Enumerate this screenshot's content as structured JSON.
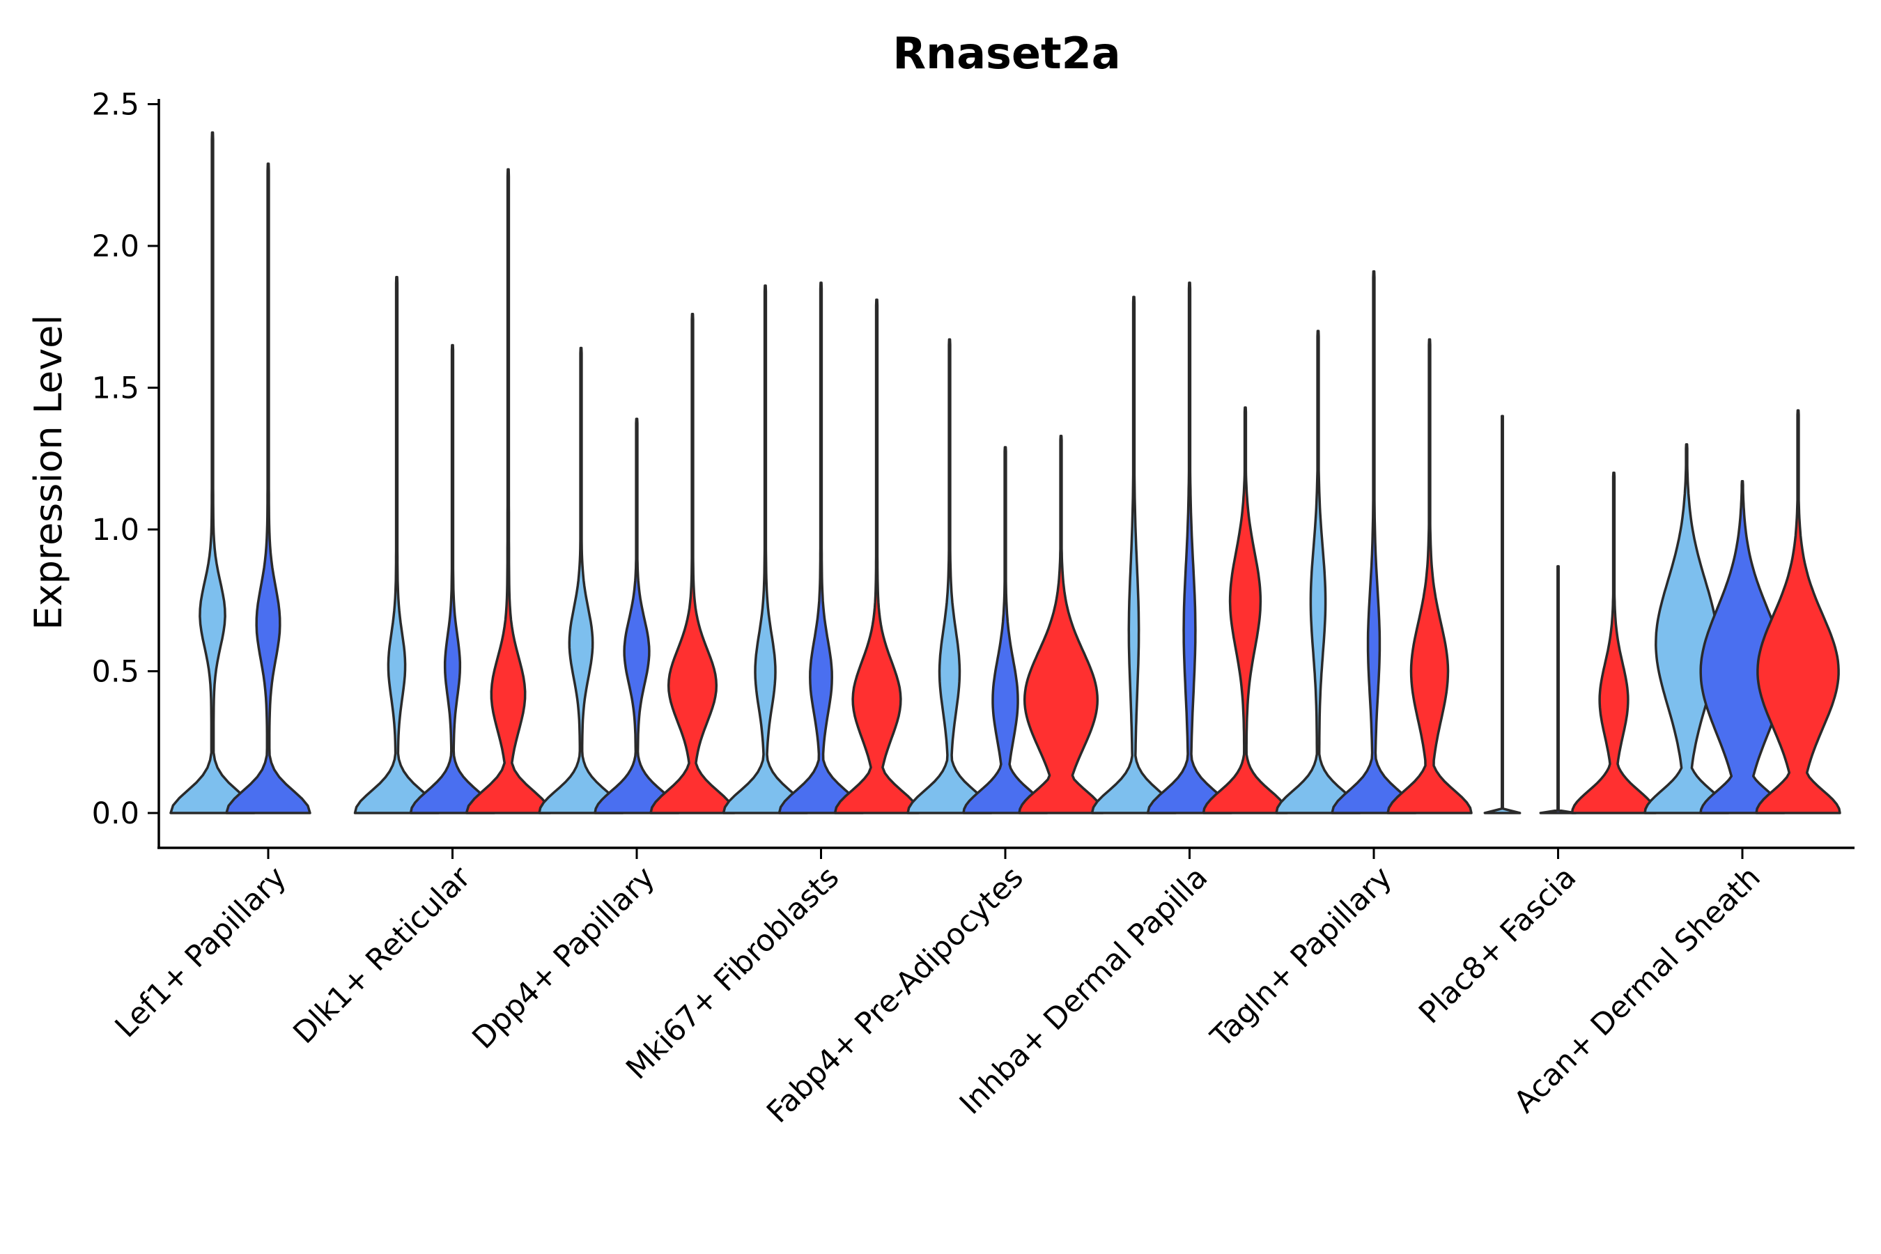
{
  "chart_data": {
    "type": "violin",
    "title": "Rnaset2a",
    "xlabel": "",
    "ylabel": "Expression Level",
    "ylim": [
      -0.12,
      2.55
    ],
    "yticks": [
      0.0,
      0.5,
      1.0,
      1.5,
      2.0,
      2.5
    ],
    "ytick_labels": [
      "0.0",
      "0.5",
      "1.0",
      "1.5",
      "2.0",
      "2.5"
    ],
    "grid": false,
    "legend": "none",
    "series": [
      {
        "name": "group-1",
        "color": "#7dbfee"
      },
      {
        "name": "group-2",
        "color": "#4a6ff0"
      },
      {
        "name": "group-3",
        "color": "#ff3030"
      }
    ],
    "categories": [
      "Lef1+ Papillary",
      "Dlk1+ Reticular",
      "Dpp4+ Papillary",
      "Mki67+ Fibroblasts",
      "Fabp4+ Pre-Adipocytes",
      "Inhba+ Dermal Papilla",
      "Tagln+ Papillary",
      "Plac8+ Fascia",
      "Acan+ Dermal Sheath"
    ],
    "violins": [
      {
        "category": "Lef1+ Papillary",
        "series": "group-1",
        "max": 2.4,
        "mode": 0.7,
        "spread": 0.1,
        "upper_width": 0.28
      },
      {
        "category": "Lef1+ Papillary",
        "series": "group-2",
        "max": 2.29,
        "mode": 0.67,
        "spread": 0.12,
        "upper_width": 0.26
      },
      {
        "category": "Dlk1+ Reticular",
        "series": "group-1",
        "max": 1.89,
        "mode": 0.52,
        "spread": 0.1,
        "upper_width": 0.18
      },
      {
        "category": "Dlk1+ Reticular",
        "series": "group-2",
        "max": 1.65,
        "mode": 0.52,
        "spread": 0.09,
        "upper_width": 0.16
      },
      {
        "category": "Dlk1+ Reticular",
        "series": "group-3",
        "max": 2.27,
        "mode": 0.42,
        "spread": 0.12,
        "upper_width": 0.38
      },
      {
        "category": "Dpp4+ Papillary",
        "series": "group-1",
        "max": 1.64,
        "mode": 0.6,
        "spread": 0.11,
        "upper_width": 0.26
      },
      {
        "category": "Dpp4+ Papillary",
        "series": "group-2",
        "max": 1.39,
        "mode": 0.57,
        "spread": 0.1,
        "upper_width": 0.28
      },
      {
        "category": "Dpp4+ Papillary",
        "series": "group-3",
        "max": 1.76,
        "mode": 0.45,
        "spread": 0.12,
        "upper_width": 0.55
      },
      {
        "category": "Mki67+ Fibroblasts",
        "series": "group-1",
        "max": 1.86,
        "mode": 0.5,
        "spread": 0.12,
        "upper_width": 0.22
      },
      {
        "category": "Mki67+ Fibroblasts",
        "series": "group-2",
        "max": 1.87,
        "mode": 0.48,
        "spread": 0.12,
        "upper_width": 0.24
      },
      {
        "category": "Mki67+ Fibroblasts",
        "series": "group-3",
        "max": 1.81,
        "mode": 0.4,
        "spread": 0.13,
        "upper_width": 0.55
      },
      {
        "category": "Fabp4+ Pre-Adipocytes",
        "series": "group-1",
        "max": 1.67,
        "mode": 0.5,
        "spread": 0.14,
        "upper_width": 0.22
      },
      {
        "category": "Fabp4+ Pre-Adipocytes",
        "series": "group-2",
        "max": 1.29,
        "mode": 0.4,
        "spread": 0.14,
        "upper_width": 0.28
      },
      {
        "category": "Fabp4+ Pre-Adipocytes",
        "series": "group-3",
        "max": 1.33,
        "mode": 0.4,
        "spread": 0.18,
        "upper_width": 0.85
      },
      {
        "category": "Inhba+ Dermal Papilla",
        "series": "group-1",
        "max": 1.82,
        "mode": 0.65,
        "spread": 0.25,
        "upper_width": 0.1
      },
      {
        "category": "Inhba+ Dermal Papilla",
        "series": "group-2",
        "max": 1.87,
        "mode": 0.65,
        "spread": 0.25,
        "upper_width": 0.12
      },
      {
        "category": "Inhba+ Dermal Papilla",
        "series": "group-3",
        "max": 1.43,
        "mode": 0.75,
        "spread": 0.18,
        "upper_width": 0.35
      },
      {
        "category": "Tagln+ Papillary",
        "series": "group-1",
        "max": 1.7,
        "mode": 0.75,
        "spread": 0.2,
        "upper_width": 0.16
      },
      {
        "category": "Tagln+ Papillary",
        "series": "group-2",
        "max": 1.91,
        "mode": 0.6,
        "spread": 0.2,
        "upper_width": 0.12
      },
      {
        "category": "Tagln+ Papillary",
        "series": "group-3",
        "max": 1.67,
        "mode": 0.5,
        "spread": 0.18,
        "upper_width": 0.42
      },
      {
        "category": "Plac8+ Fascia",
        "series": "group-1",
        "max": 1.4,
        "mode": 0.0,
        "spread": 0.0,
        "upper_width": 0.0
      },
      {
        "category": "Plac8+ Fascia",
        "series": "group-2",
        "max": 0.87,
        "mode": 0.0,
        "spread": 0.0,
        "upper_width": 0.0
      },
      {
        "category": "Plac8+ Fascia",
        "series": "group-3",
        "max": 1.2,
        "mode": 0.4,
        "spread": 0.12,
        "upper_width": 0.32
      },
      {
        "category": "Acan+ Dermal Sheath",
        "series": "group-1",
        "max": 1.3,
        "mode": 0.6,
        "spread": 0.25,
        "upper_width": 0.72
      },
      {
        "category": "Acan+ Dermal Sheath",
        "series": "group-2",
        "max": 1.17,
        "mode": 0.5,
        "spread": 0.25,
        "upper_width": 0.98
      },
      {
        "category": "Acan+ Dermal Sheath",
        "series": "group-3",
        "max": 1.42,
        "mode": 0.5,
        "spread": 0.22,
        "upper_width": 0.95
      }
    ]
  }
}
